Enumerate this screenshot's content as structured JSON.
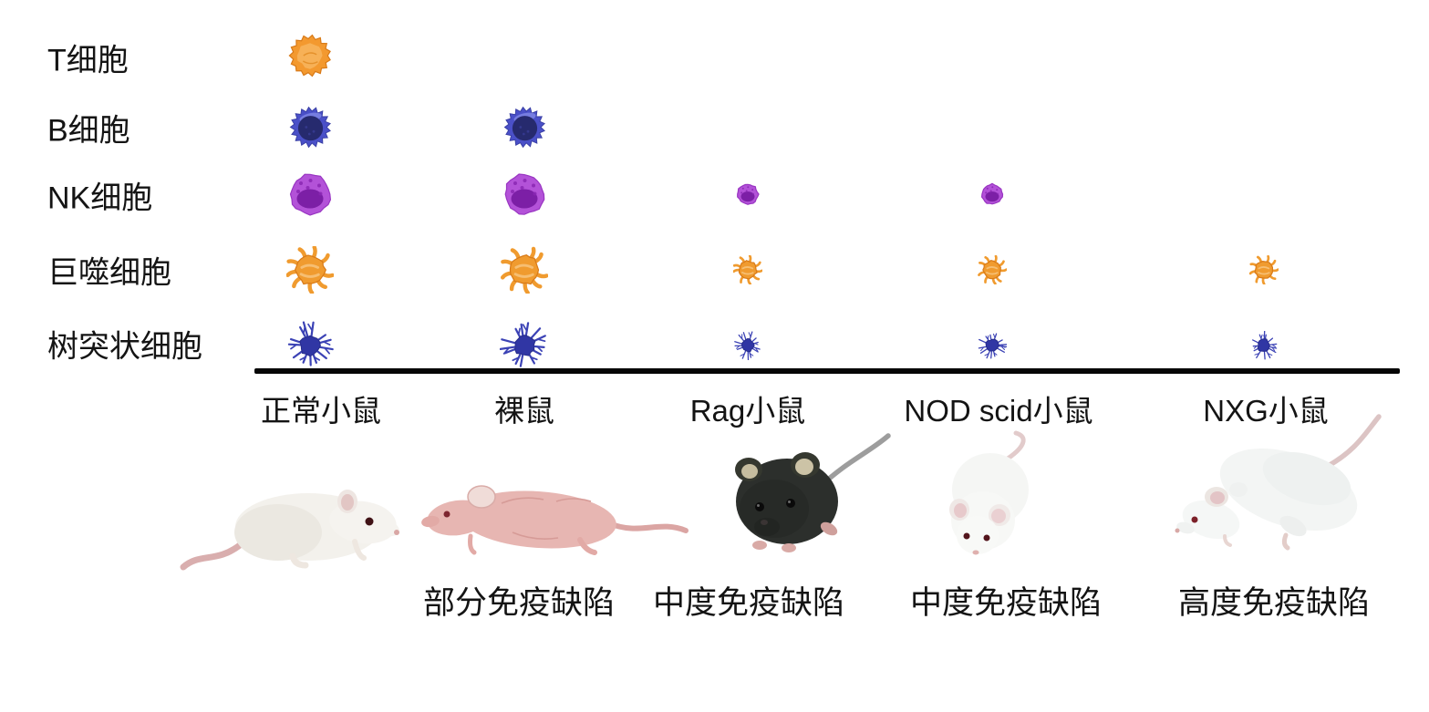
{
  "figure": {
    "rows": [
      {
        "id": "t-cell",
        "type": "t",
        "label": "T细胞",
        "icon": "t-cell-icon",
        "abundance": [
          "large",
          "none",
          "none",
          "none",
          "none"
        ]
      },
      {
        "id": "b-cell",
        "type": "b",
        "label": "B细胞",
        "icon": "b-cell-icon",
        "abundance": [
          "large",
          "large",
          "none",
          "none",
          "none"
        ]
      },
      {
        "id": "nk-cell",
        "type": "nk",
        "label": "NK细胞",
        "icon": "nk-cell-icon",
        "abundance": [
          "large",
          "large",
          "small",
          "small",
          "none"
        ]
      },
      {
        "id": "macrophage",
        "type": "mac",
        "label": "巨噬细胞",
        "icon": "macrophage-icon",
        "abundance": [
          "large",
          "large",
          "small",
          "small",
          "small"
        ]
      },
      {
        "id": "dendritic-cell",
        "type": "den",
        "label": "树突状细胞",
        "icon": "dendritic-cell-icon",
        "abundance": [
          "large",
          "large",
          "small",
          "small",
          "small"
        ]
      }
    ],
    "columns": [
      {
        "id": "normal-mouse",
        "header": "正常小鼠",
        "deficiency_label": "",
        "mouse": "white laboratory mouse, side view"
      },
      {
        "id": "nude-mouse",
        "header": "裸鼠",
        "deficiency_label": "部分免疫缺陷",
        "mouse": "hairless pink nude mouse, side view"
      },
      {
        "id": "rag-mouse",
        "header": "Rag小鼠",
        "deficiency_label": "中度免疫缺陷",
        "mouse": "black mouse, front view"
      },
      {
        "id": "nod-scid-mouse",
        "header": "NOD scid小鼠",
        "deficiency_label": "中度免疫缺陷",
        "mouse": "white mouse, front-top view"
      },
      {
        "id": "nxg-mouse",
        "header": "NXG小鼠",
        "deficiency_label": "高度免疫缺陷",
        "mouse": "white mouse, top view"
      }
    ]
  },
  "colors": {
    "t": {
      "body": "#F3992F",
      "edge": "#D87A18",
      "inner": "#F7B45C",
      "detail": "#E08A20"
    },
    "b": {
      "body": "#4A50C8",
      "edge": "#3A40A6",
      "nucleus": "#262A6E",
      "highlight": "#7B82E2",
      "speckle": "#3A3F9A"
    },
    "nk": {
      "body": "#B352D8",
      "edge": "#9935C2",
      "nucleus": "#7C1FA6",
      "dots": "#8927B3"
    },
    "mac": {
      "body": "#F09B2F",
      "edge": "#D87A18",
      "inner": "#F6BE72"
    },
    "den": {
      "body": "#3036A4",
      "edge": "#262C8C",
      "spike": "#3B42B5"
    },
    "divider": "#060606",
    "text": "#141414",
    "background": "#ffffff"
  }
}
